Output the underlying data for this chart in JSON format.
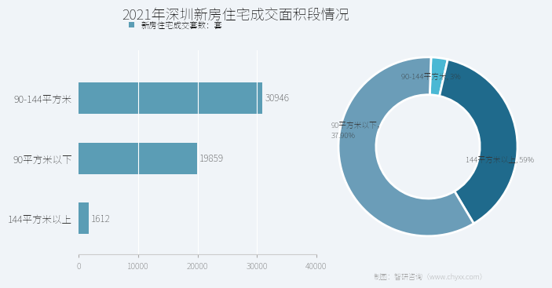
{
  "title": "2021年深圳新房住宅成交面积段情况",
  "bar_categories": [
    "90-144平方米",
    "90平方米以下",
    "144平方米以上"
  ],
  "bar_values": [
    30946,
    19859,
    1612
  ],
  "bar_color": "#5b9db5",
  "legend_label": "新房住宅成交套数：套",
  "xlim": [
    0,
    40000
  ],
  "xticks": [
    0,
    10000,
    20000,
    30000,
    40000
  ],
  "pie_values": [
    3,
    37.9,
    59.1
  ],
  "pie_colors": [
    "#4ab8d4",
    "#1f6a8c",
    "#6b9db8"
  ],
  "pie_startangle": 88,
  "background_color": "#f0f4f8",
  "watermark": "制图：智研咨询（www.chyxx.com）"
}
